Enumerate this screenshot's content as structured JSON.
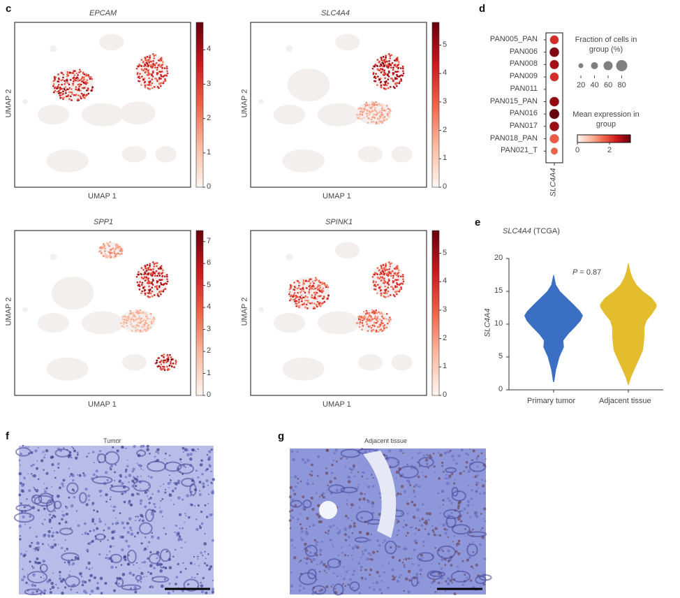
{
  "panels": {
    "c": "c",
    "d": "d",
    "e": "e",
    "f": "f",
    "g": "g"
  },
  "umap": {
    "xlabel": "UMAP 1",
    "ylabel": "UMAP 2"
  },
  "chart_data": [
    {
      "type": "scatter",
      "panel": "c",
      "title": "EPCAM",
      "xlabel": "UMAP 1",
      "ylabel": "UMAP 2",
      "colorbar": {
        "min": 0,
        "max": 4.8,
        "ticks": [
          0,
          1,
          2,
          3,
          4
        ]
      },
      "colormap": "Reds"
    },
    {
      "type": "scatter",
      "panel": "c",
      "title": "SLC4A4",
      "xlabel": "UMAP 1",
      "ylabel": "UMAP 2",
      "colorbar": {
        "min": 0,
        "max": 5.8,
        "ticks": [
          0,
          1,
          2,
          3,
          4,
          5
        ]
      },
      "colormap": "Reds"
    },
    {
      "type": "scatter",
      "panel": "c",
      "title": "SPP1",
      "xlabel": "UMAP 1",
      "ylabel": "UMAP 2",
      "colorbar": {
        "min": 0,
        "max": 7.5,
        "ticks": [
          0,
          1,
          2,
          3,
          4,
          5,
          6,
          7
        ]
      },
      "colormap": "Reds"
    },
    {
      "type": "scatter",
      "panel": "c",
      "title": "SPINK1",
      "xlabel": "UMAP 1",
      "ylabel": "UMAP 2",
      "colorbar": {
        "min": 0,
        "max": 5.8,
        "ticks": [
          0,
          1,
          2,
          3,
          4,
          5
        ]
      },
      "colormap": "Reds"
    },
    {
      "type": "heatmap",
      "subtype": "dotplot",
      "panel": "d",
      "gene": "SLC4A4",
      "categories": [
        "PAN005_PAN",
        "PAN006",
        "PAN008",
        "PAN009",
        "PAN011",
        "PAN015_PAN",
        "PAN016",
        "PAN017",
        "PAN018_PAN",
        "PAN021_T"
      ],
      "fraction_pct": [
        70,
        80,
        75,
        70,
        0,
        80,
        85,
        80,
        75,
        45
      ],
      "mean_expression": [
        1.9,
        3.0,
        2.6,
        1.9,
        0,
        2.8,
        3.3,
        2.7,
        1.2,
        1.1
      ],
      "size_legend": {
        "title": "Fraction of cells in group (%)",
        "values": [
          20,
          40,
          60,
          80
        ]
      },
      "color_legend": {
        "title": "Mean expression in group",
        "ticks": [
          0,
          2
        ],
        "range": [
          0,
          3.3
        ]
      }
    },
    {
      "type": "violin",
      "panel": "e",
      "title": "SLC4A4 (TCGA)",
      "title_gene": "SLC4A4",
      "title_suffix": " (TCGA)",
      "ylabel": "SLC4A4",
      "ylim": [
        0,
        20
      ],
      "yticks": [
        0,
        5,
        10,
        15,
        20
      ],
      "categories": [
        "Primary tumor",
        "Adjacent tissue"
      ],
      "colors": [
        "#3b6fc4",
        "#e4bd2f"
      ],
      "annotation": {
        "p_label": "P",
        "p_value": "= 0.87"
      },
      "series": [
        {
          "name": "Primary tumor",
          "range": [
            1.2,
            17.5
          ],
          "density_y": [
            1.2,
            3,
            5,
            6.5,
            7.5,
            8.5,
            9.5,
            10.5,
            11.3,
            12,
            13,
            14,
            15,
            16,
            17.5
          ],
          "density_w": [
            0.02,
            0.08,
            0.2,
            0.35,
            0.33,
            0.5,
            0.72,
            0.92,
            1.0,
            0.9,
            0.68,
            0.45,
            0.22,
            0.08,
            0.01
          ]
        },
        {
          "name": "Adjacent tissue",
          "range": [
            0.7,
            19.3
          ],
          "density_y": [
            0.7,
            2,
            4,
            6,
            8,
            9.5,
            10.5,
            11.5,
            12.5,
            13,
            14,
            15,
            16,
            17,
            18,
            19.3
          ],
          "density_w": [
            0.01,
            0.1,
            0.3,
            0.5,
            0.55,
            0.55,
            0.62,
            0.8,
            0.95,
            0.97,
            0.8,
            0.5,
            0.28,
            0.15,
            0.07,
            0.01
          ]
        }
      ]
    }
  ],
  "histology": {
    "f_title": "Tumor",
    "g_title": "Adjacent tissue"
  }
}
